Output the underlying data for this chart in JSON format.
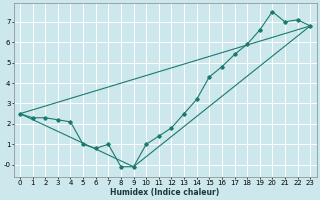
{
  "xlabel": "Humidex (Indice chaleur)",
  "bg_color": "#cde8ec",
  "grid_color": "#ffffff",
  "line_color": "#1a7a6e",
  "xlim": [
    -0.5,
    23.5
  ],
  "ylim": [
    -0.6,
    7.9
  ],
  "xticks": [
    0,
    1,
    2,
    3,
    4,
    5,
    6,
    7,
    8,
    9,
    10,
    11,
    12,
    13,
    14,
    15,
    16,
    17,
    18,
    19,
    20,
    21,
    22,
    23
  ],
  "yticks": [
    0,
    1,
    2,
    3,
    4,
    5,
    6,
    7
  ],
  "ytick_labels": [
    "-0",
    "1",
    "2",
    "3",
    "4",
    "5",
    "6",
    "7"
  ],
  "curve1_x": [
    0,
    1,
    2,
    3,
    4,
    5,
    6,
    7,
    8,
    9,
    10,
    11,
    12,
    13,
    14,
    15,
    16,
    17,
    18,
    19,
    20,
    21,
    22,
    23
  ],
  "curve1_y": [
    2.5,
    2.3,
    2.3,
    2.2,
    2.1,
    1.0,
    0.8,
    1.0,
    -0.1,
    -0.1,
    1.0,
    1.4,
    1.8,
    2.5,
    3.2,
    4.3,
    4.8,
    5.4,
    5.9,
    6.6,
    7.5,
    7.0,
    7.1,
    6.8
  ],
  "curve2_x": [
    0,
    23
  ],
  "curve2_y": [
    2.5,
    6.8
  ],
  "curve3_x": [
    0,
    9,
    23
  ],
  "curve3_y": [
    2.5,
    -0.1,
    6.8
  ],
  "tick_fontsize": 5.0,
  "label_fontsize": 5.5
}
